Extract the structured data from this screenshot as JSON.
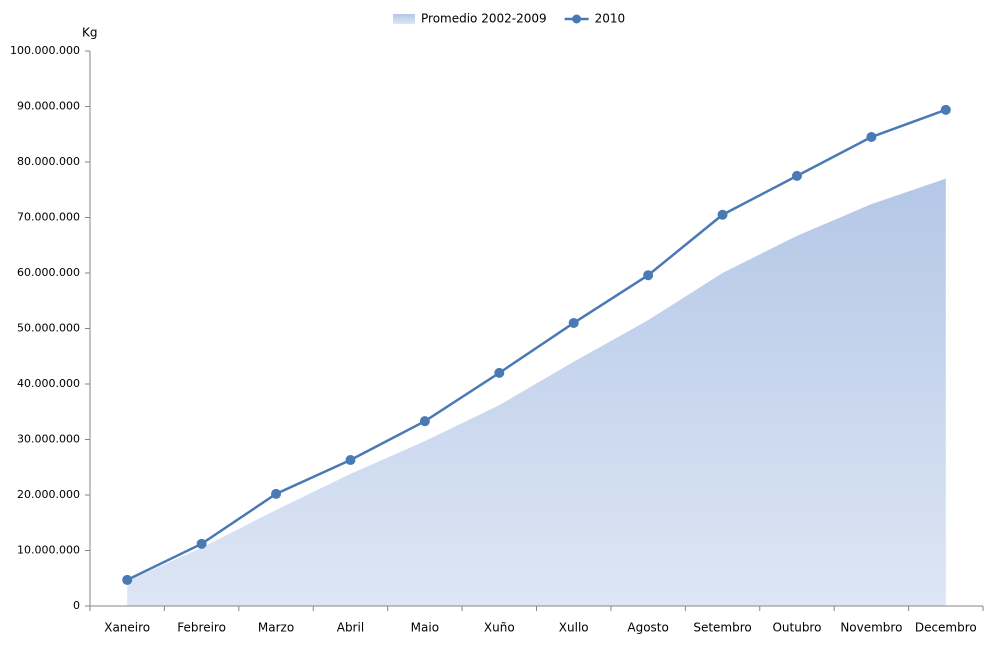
{
  "chart_data": {
    "type": "line",
    "y_label": "Kg",
    "categories": [
      "Xaneiro",
      "Febreiro",
      "Marzo",
      "Abril",
      "Maio",
      "Xuño",
      "Xullo",
      "Agosto",
      "Setembro",
      "Outubro",
      "Novembro",
      "Decembro"
    ],
    "series": [
      {
        "name": "Promedio 2002-2009",
        "type": "area",
        "color": "#b4c7e7",
        "values": [
          4500000,
          10500000,
          17300000,
          23800000,
          29700000,
          36200000,
          44000000,
          51500000,
          60000000,
          66700000,
          72400000,
          77000000
        ]
      },
      {
        "name": "2010",
        "type": "line",
        "color": "#4a7ab5",
        "values": [
          4700000,
          11200000,
          20200000,
          26300000,
          33300000,
          42000000,
          51000000,
          59600000,
          70500000,
          77500000,
          84500000,
          89400000
        ]
      }
    ],
    "ylim": [
      0,
      100000000
    ],
    "yticks": [
      0,
      {
        "value": 10000000,
        "label": "10.000.000"
      },
      {
        "value": 20000000,
        "label": "20.000.000"
      },
      {
        "value": 30000000,
        "label": "30.000.000"
      },
      {
        "value": 40000000,
        "label": "40.000.000"
      },
      {
        "value": 50000000,
        "label": "50.000.000"
      },
      {
        "value": 60000000,
        "label": "60.000.000"
      },
      {
        "value": 70000000,
        "label": "70.000.000"
      },
      {
        "value": 80000000,
        "label": "80.000.000"
      },
      {
        "value": 90000000,
        "label": "90.000.000"
      },
      {
        "value": 100000000,
        "label": "100.000.000"
      }
    ],
    "legend": "top"
  }
}
